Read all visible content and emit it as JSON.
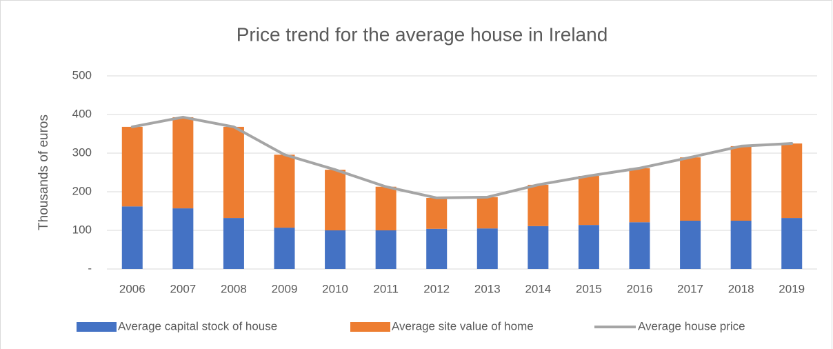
{
  "chart_data": {
    "type": "bar",
    "stacked": true,
    "title": "Price trend for the average house in Ireland",
    "y_label": "Thousands of euros",
    "categories": [
      "2006",
      "2007",
      "2008",
      "2009",
      "2010",
      "2011",
      "2012",
      "2013",
      "2014",
      "2015",
      "2016",
      "2017",
      "2018",
      "2019"
    ],
    "series": [
      {
        "name": "Average capital stock of house",
        "color": "#4472c4",
        "type": "bar",
        "values": [
          162,
          157,
          132,
          107,
          100,
          100,
          104,
          105,
          111,
          114,
          121,
          125,
          125,
          132
        ]
      },
      {
        "name": "Average site value of home",
        "color": "#ed7d31",
        "type": "bar",
        "values": [
          206,
          236,
          236,
          189,
          157,
          113,
          80,
          81,
          107,
          127,
          140,
          164,
          193,
          193
        ]
      },
      {
        "name": "Average house price",
        "color": "#a5a5a5",
        "type": "line",
        "values": [
          368,
          393,
          368,
          296,
          257,
          213,
          184,
          186,
          218,
          241,
          261,
          289,
          318,
          325
        ]
      }
    ],
    "ylim": [
      0,
      500
    ],
    "yticks": [
      {
        "value": 0,
        "label": "-"
      },
      100,
      200,
      300,
      400,
      500
    ],
    "grid": true,
    "legend": "bottom"
  }
}
